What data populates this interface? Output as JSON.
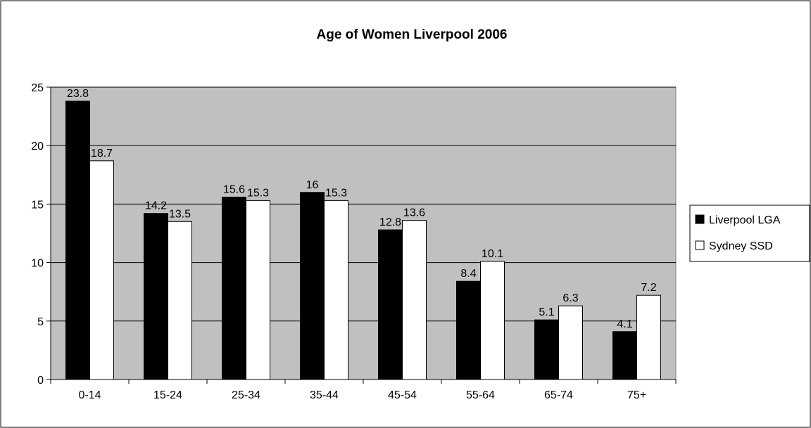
{
  "chart_data": {
    "type": "bar",
    "title": "Age of Women Liverpool 2006",
    "xlabel": "",
    "ylabel": "",
    "categories": [
      "0-14",
      "15-24",
      "25-34",
      "35-44",
      "45-54",
      "55-64",
      "65-74",
      "75+"
    ],
    "series": [
      {
        "name": "Liverpool LGA",
        "values": [
          23.8,
          14.2,
          15.6,
          16,
          12.8,
          8.4,
          5.1,
          4.1
        ],
        "color": "#000000"
      },
      {
        "name": "Sydney SSD",
        "values": [
          18.7,
          13.5,
          15.3,
          15.3,
          13.6,
          10.1,
          6.3,
          7.2
        ],
        "color": "#ffffff"
      }
    ],
    "ylim": [
      0,
      25
    ],
    "yticks": [
      0,
      5,
      10,
      15,
      20,
      25
    ],
    "grid": true,
    "legend": "right",
    "plot_background": "#c0c0c0"
  }
}
